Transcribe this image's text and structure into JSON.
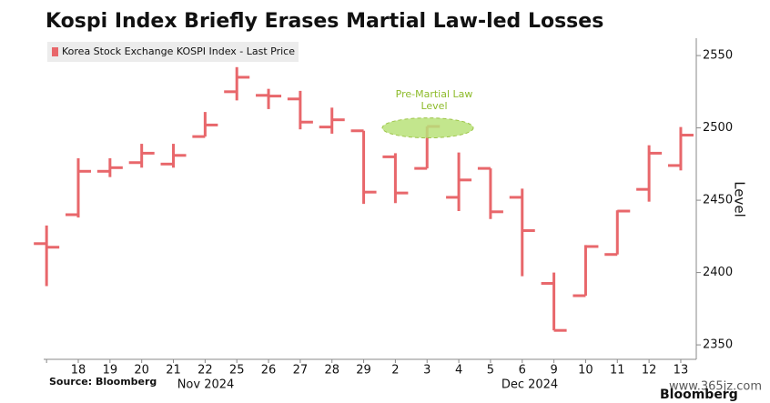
{
  "chart_data": {
    "type": "ohlc",
    "title": "Kospi Index Briefly Erases Martial Law-led Losses",
    "y_axis_label": "Level",
    "source": "Source: Bloomberg",
    "brand": "Bloomberg",
    "watermark": "www.365jz.com",
    "categories": [
      null,
      "18",
      "19",
      "20",
      "21",
      "22",
      "25",
      "26",
      "27",
      "28",
      "29",
      "2",
      "3",
      "4",
      "5",
      "6",
      "9",
      "10",
      "11",
      "12",
      "13"
    ],
    "x_group_labels": [
      "Nov 2024",
      "Dec 2024"
    ],
    "series": [
      {
        "name": "Korea Stock Exchange KOSPI Index - Last Price",
        "color": "#e8676b",
        "open": [
          2420,
          2440,
          2470,
          2476,
          2475,
          2494,
          2525,
          2522.5,
          2520,
          2500.6,
          2498,
          2480,
          2472,
          2452,
          2472,
          2452,
          2392.5,
          2384,
          2412.5,
          2457.5,
          2474
        ],
        "high": [
          2432.5,
          2479,
          2479,
          2489,
          2489,
          2511,
          2542,
          2527,
          2525.6,
          2514,
          2498,
          2482.5,
          2501,
          2483,
          2472,
          2458,
          2400,
          2419,
          2443,
          2488,
          2500.6
        ],
        "low": [
          2390.6,
          2438,
          2466,
          2472.5,
          2472.5,
          2494,
          2519,
          2513,
          2499,
          2496,
          2447.5,
          2448,
          2472,
          2442.5,
          2437,
          2397.5,
          2360,
          2384,
          2412.5,
          2449,
          2470.6
        ],
        "close": [
          2417.5,
          2470,
          2472.5,
          2482.5,
          2481,
          2502,
          2535,
          2522,
          2504,
          2505.6,
          2455.6,
          2455,
          2501,
          2464,
          2442,
          2429,
          2360,
          2418,
          2442.5,
          2482.5,
          2495
        ]
      }
    ],
    "annotation": {
      "text": "Pre-Martial Law Level",
      "value": 2500
    },
    "ylim": [
      2340,
      2562
    ],
    "yticks": [
      2350,
      2400,
      2450,
      2500,
      2550
    ],
    "grid": false
  }
}
